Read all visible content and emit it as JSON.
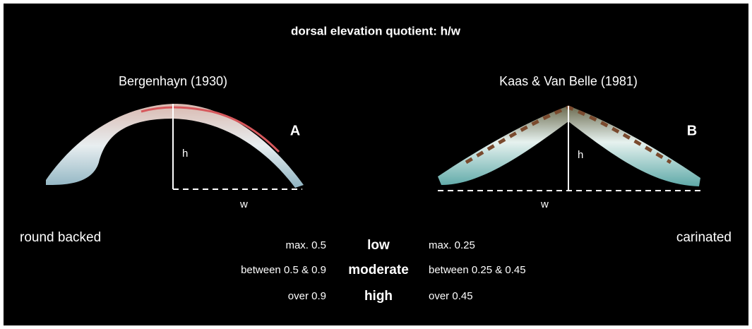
{
  "title": "dorsal elevation quotient: h/w",
  "panels": [
    {
      "author": "Bergenhayn (1930)",
      "letter": "A",
      "h_label": "h",
      "w_label": "w"
    },
    {
      "author": "Kaas & Van Belle (1981)",
      "letter": "B",
      "h_label": "h",
      "w_label": "w"
    }
  ],
  "left_label": "round backed",
  "right_label": "carinated",
  "table": {
    "rows": [
      {
        "left": "max. 0.5",
        "category": "low",
        "right": "max. 0.25"
      },
      {
        "left": "between 0.5 & 0.9",
        "category": "moderate",
        "right": "between 0.25 & 0.45"
      },
      {
        "left": "over 0.9",
        "category": "high",
        "right": "over 0.45"
      }
    ]
  }
}
